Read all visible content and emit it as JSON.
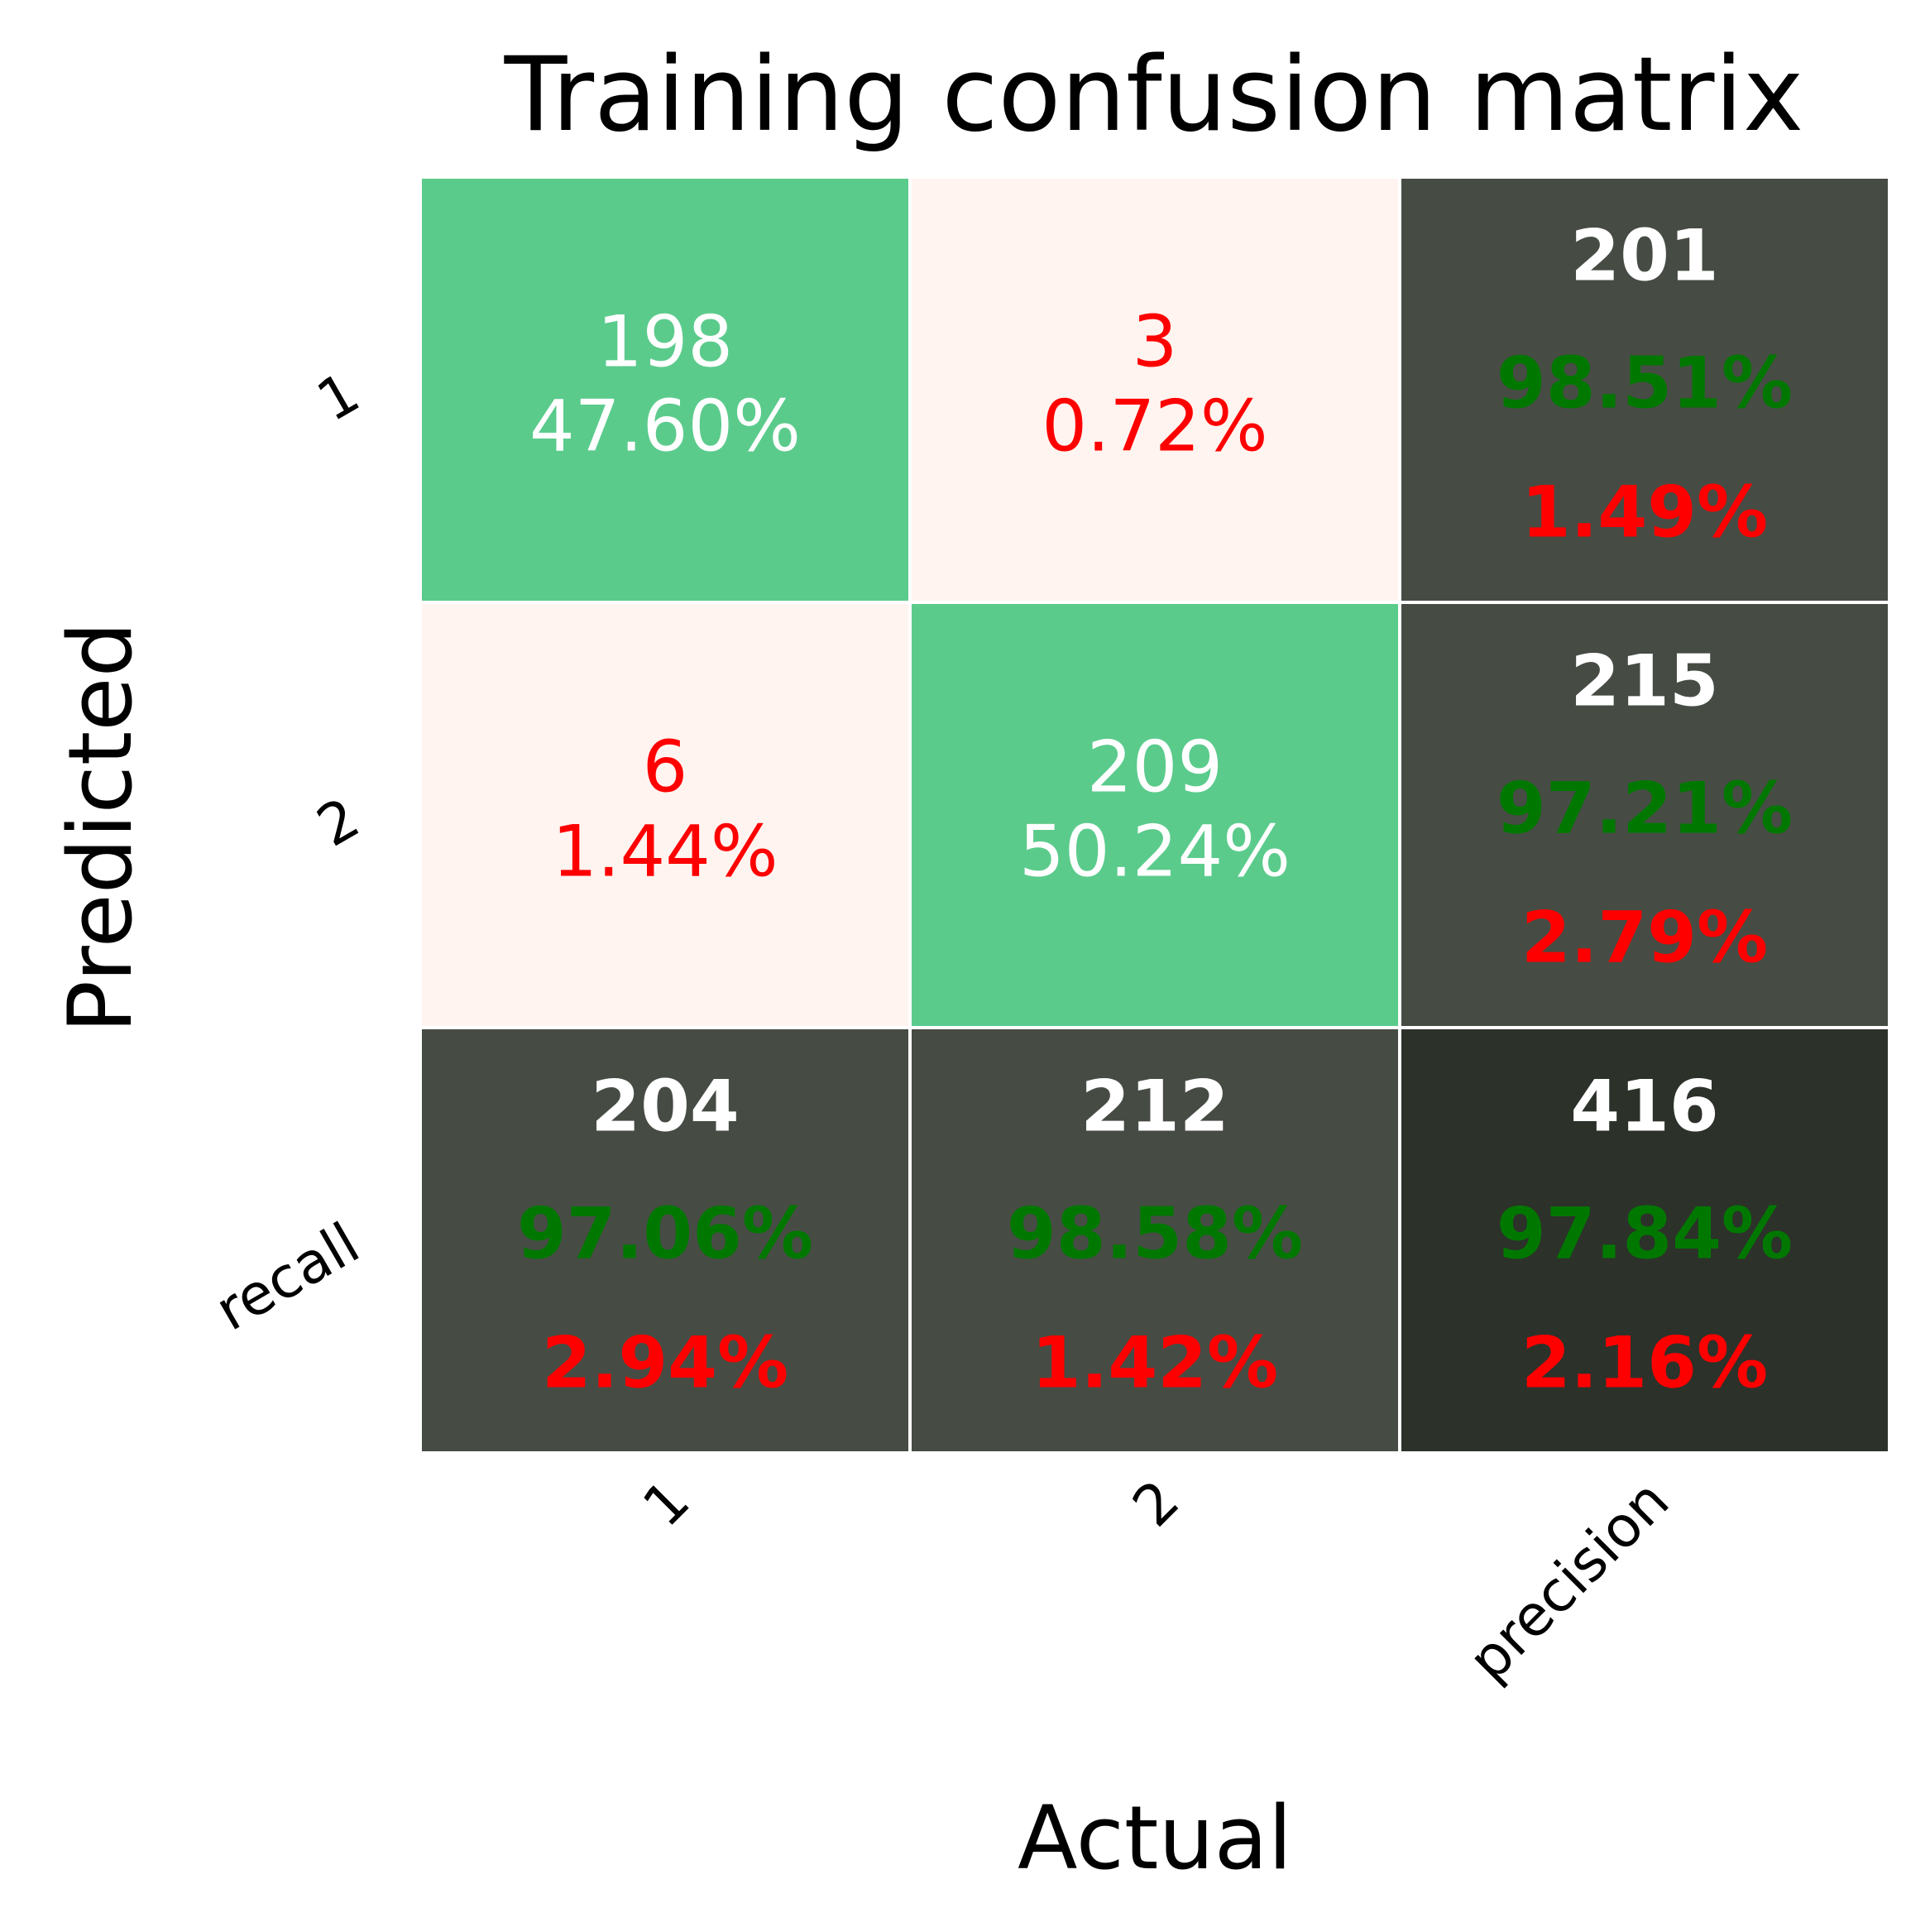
{
  "chart_data": {
    "type": "heatmap",
    "title": "Training confusion matrix",
    "xlabel": "Actual",
    "ylabel": "Predicted",
    "x_tick_labels": [
      "1",
      "2",
      "precision"
    ],
    "y_tick_labels": [
      "1",
      "2",
      "recall"
    ],
    "cells": [
      {
        "row": 0,
        "col": 0,
        "count": "198",
        "percent": "47.60%",
        "kind": "correct"
      },
      {
        "row": 0,
        "col": 1,
        "count": "3",
        "percent": "0.72%",
        "kind": "error"
      },
      {
        "row": 1,
        "col": 0,
        "count": "6",
        "percent": "1.44%",
        "kind": "error"
      },
      {
        "row": 1,
        "col": 1,
        "count": "209",
        "percent": "50.24%",
        "kind": "correct"
      }
    ],
    "summary_cells": [
      {
        "row": 0,
        "col": 2,
        "count": "201",
        "good": "98.51%",
        "bad": "1.49%",
        "kind": "summary"
      },
      {
        "row": 1,
        "col": 2,
        "count": "215",
        "good": "97.21%",
        "bad": "2.79%",
        "kind": "summary"
      },
      {
        "row": 2,
        "col": 0,
        "count": "204",
        "good": "97.06%",
        "bad": "2.94%",
        "kind": "summary"
      },
      {
        "row": 2,
        "col": 1,
        "count": "212",
        "good": "98.58%",
        "bad": "1.42%",
        "kind": "summary"
      },
      {
        "row": 2,
        "col": 2,
        "count": "416",
        "good": "97.84%",
        "bad": "2.16%",
        "kind": "total"
      }
    ],
    "colors": {
      "correct": "#5bcb8c",
      "error": "#fff4f0",
      "summary": "#464c44",
      "total": "#2c312a",
      "text_light": "#ffffff",
      "text_error": "#ff0000",
      "text_good": "#007800",
      "text_bad": "#ff0000",
      "grid_line": "#ffffff"
    },
    "grid": false,
    "legend": "none"
  }
}
